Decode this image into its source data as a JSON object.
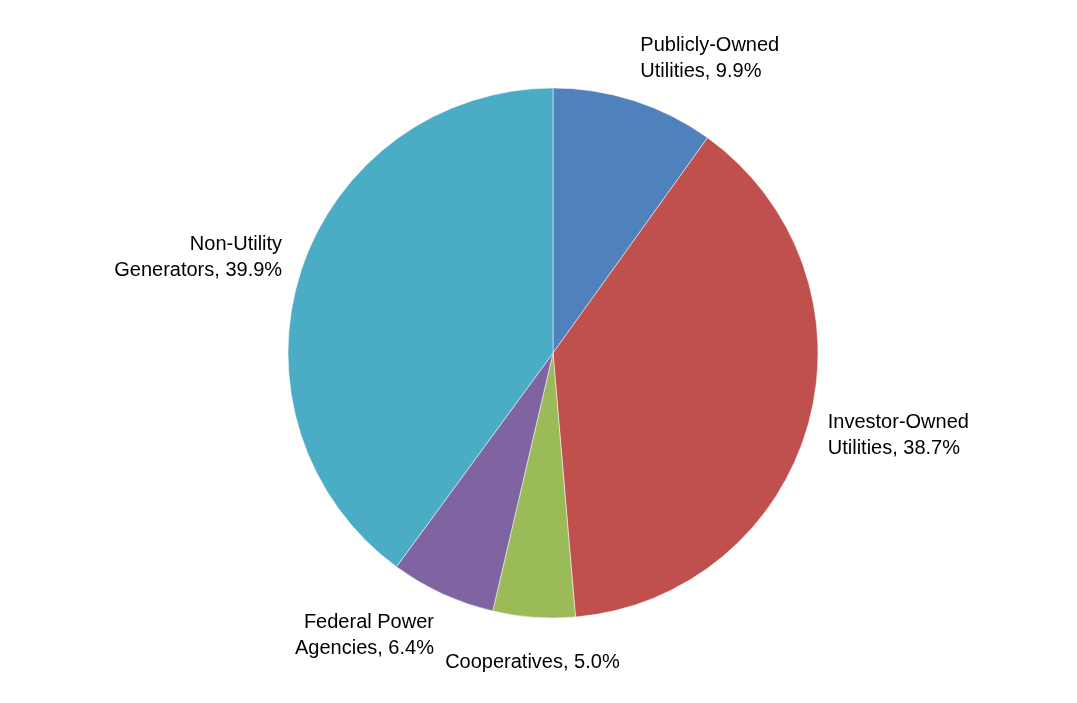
{
  "chart_data": {
    "type": "pie",
    "categories": [
      "Publicly-Owned Utilities",
      "Investor-Owned Utilities",
      "Cooperatives",
      "Federal Power Agencies",
      "Non-Utility Generators"
    ],
    "values": [
      9.9,
      38.7,
      5.0,
      6.4,
      39.9
    ],
    "value_labels": [
      "9.9%",
      "38.7%",
      "5.0%",
      "6.4%",
      "39.9%"
    ],
    "colors": [
      "#4f81bd",
      "#c0504d",
      "#9bbb59",
      "#8064a2",
      "#4bacc6"
    ]
  }
}
